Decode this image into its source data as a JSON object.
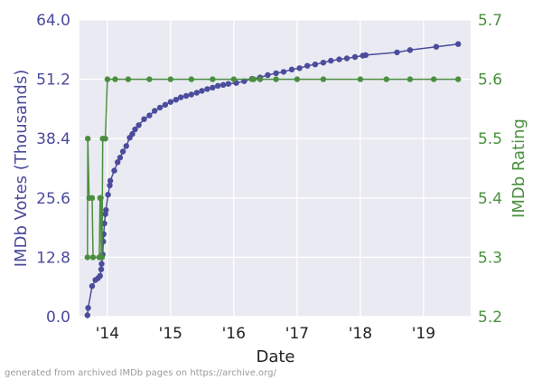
{
  "chart_data": {
    "type": "line",
    "xlabel": "Date",
    "ylabel_left": "IMDb Votes (Thousands)",
    "ylabel_right": "IMDb Rating",
    "x_ticks": [
      "'14",
      "'15",
      "'16",
      "'17",
      "'18",
      "'19"
    ],
    "y_left_ticks": [
      "0.0",
      "12.8",
      "25.6",
      "38.4",
      "51.2",
      "64.0"
    ],
    "y_right_ticks": [
      "5.2",
      "5.3",
      "5.4",
      "5.5",
      "5.6",
      "5.7"
    ],
    "xlim": [
      "2013-07-24",
      "2019-09-30"
    ],
    "ylim_left": [
      0,
      64
    ],
    "ylim_right": [
      5.2,
      5.7
    ],
    "grid": true,
    "series": [
      {
        "name": "IMDb Votes (Thousands)",
        "axis": "left",
        "color": "#4c4c9d",
        "points": [
          [
            "2013-09-08",
            0.3
          ],
          [
            "2013-09-12",
            1.9
          ],
          [
            "2013-10-05",
            6.6
          ],
          [
            "2013-10-24",
            7.9
          ],
          [
            "2013-11-08",
            8.3
          ],
          [
            "2013-11-20",
            8.8
          ],
          [
            "2013-11-26",
            10.2
          ],
          [
            "2013-11-29",
            11.4
          ],
          [
            "2013-12-05",
            13.4
          ],
          [
            "2013-12-08",
            16.2
          ],
          [
            "2013-12-11",
            17.8
          ],
          [
            "2013-12-15",
            20.1
          ],
          [
            "2013-12-20",
            22.1
          ],
          [
            "2013-12-24",
            23.0
          ],
          [
            "2014-01-05",
            26.3
          ],
          [
            "2014-01-15",
            28.3
          ],
          [
            "2014-01-18",
            29.3
          ],
          [
            "2014-02-10",
            31.5
          ],
          [
            "2014-03-01",
            33.3
          ],
          [
            "2014-03-15",
            34.3
          ],
          [
            "2014-04-01",
            35.6
          ],
          [
            "2014-04-20",
            36.8
          ],
          [
            "2014-05-10",
            38.6
          ],
          [
            "2014-05-25",
            39.4
          ],
          [
            "2014-06-10",
            40.4
          ],
          [
            "2014-07-01",
            41.3
          ],
          [
            "2014-08-01",
            42.6
          ],
          [
            "2014-09-01",
            43.4
          ],
          [
            "2014-10-01",
            44.4
          ],
          [
            "2014-11-01",
            45.1
          ],
          [
            "2014-12-01",
            45.7
          ],
          [
            "2015-01-01",
            46.3
          ],
          [
            "2015-02-01",
            46.8
          ],
          [
            "2015-03-01",
            47.3
          ],
          [
            "2015-04-01",
            47.6
          ],
          [
            "2015-05-01",
            47.9
          ],
          [
            "2015-06-01",
            48.3
          ],
          [
            "2015-07-01",
            48.7
          ],
          [
            "2015-08-01",
            49.1
          ],
          [
            "2015-09-01",
            49.4
          ],
          [
            "2015-10-01",
            49.8
          ],
          [
            "2015-11-01",
            50.0
          ],
          [
            "2015-12-01",
            50.2
          ],
          [
            "2016-01-15",
            50.4
          ],
          [
            "2016-03-01",
            50.8
          ],
          [
            "2016-04-15",
            51.3
          ],
          [
            "2016-06-01",
            51.6
          ],
          [
            "2016-07-15",
            52.1
          ],
          [
            "2016-09-01",
            52.5
          ],
          [
            "2016-10-15",
            52.8
          ],
          [
            "2016-12-01",
            53.3
          ],
          [
            "2017-01-15",
            53.6
          ],
          [
            "2017-03-01",
            54.1
          ],
          [
            "2017-04-15",
            54.4
          ],
          [
            "2017-06-01",
            54.8
          ],
          [
            "2017-07-15",
            55.2
          ],
          [
            "2017-09-01",
            55.5
          ],
          [
            "2017-10-15",
            55.7
          ],
          [
            "2017-12-01",
            56.0
          ],
          [
            "2018-01-15",
            56.3
          ],
          [
            "2018-02-01",
            56.4
          ],
          [
            "2018-08-01",
            57.0
          ],
          [
            "2018-10-15",
            57.5
          ],
          [
            "2019-03-15",
            58.2
          ],
          [
            "2019-07-20",
            58.8
          ]
        ]
      },
      {
        "name": "IMDb Rating",
        "axis": "right",
        "color": "#4a8f3f",
        "points": [
          [
            "2013-09-08",
            5.3
          ],
          [
            "2013-09-10",
            5.5
          ],
          [
            "2013-09-18",
            5.4
          ],
          [
            "2013-10-05",
            5.4
          ],
          [
            "2013-10-10",
            5.3
          ],
          [
            "2013-11-15",
            5.3
          ],
          [
            "2013-11-20",
            5.4
          ],
          [
            "2013-11-24",
            5.4
          ],
          [
            "2013-11-27",
            5.3
          ],
          [
            "2013-12-01",
            5.3
          ],
          [
            "2013-12-05",
            5.5
          ],
          [
            "2013-12-20",
            5.5
          ],
          [
            "2014-01-01",
            5.6
          ],
          [
            "2014-02-15",
            5.6
          ],
          [
            "2014-05-01",
            5.6
          ],
          [
            "2014-09-01",
            5.6
          ],
          [
            "2015-01-01",
            5.6
          ],
          [
            "2015-05-01",
            5.6
          ],
          [
            "2015-09-01",
            5.6
          ],
          [
            "2016-01-01",
            5.6
          ],
          [
            "2016-04-15",
            5.6
          ],
          [
            "2016-04-25",
            5.6
          ],
          [
            "2016-06-01",
            5.6
          ],
          [
            "2016-09-01",
            5.6
          ],
          [
            "2017-01-01",
            5.6
          ],
          [
            "2017-06-01",
            5.6
          ],
          [
            "2018-01-01",
            5.6
          ],
          [
            "2018-06-01",
            5.6
          ],
          [
            "2018-10-15",
            5.6
          ],
          [
            "2019-03-01",
            5.6
          ],
          [
            "2019-07-20",
            5.6
          ]
        ]
      }
    ]
  },
  "footer": "generated from archived IMDb pages on https://archive.org/"
}
